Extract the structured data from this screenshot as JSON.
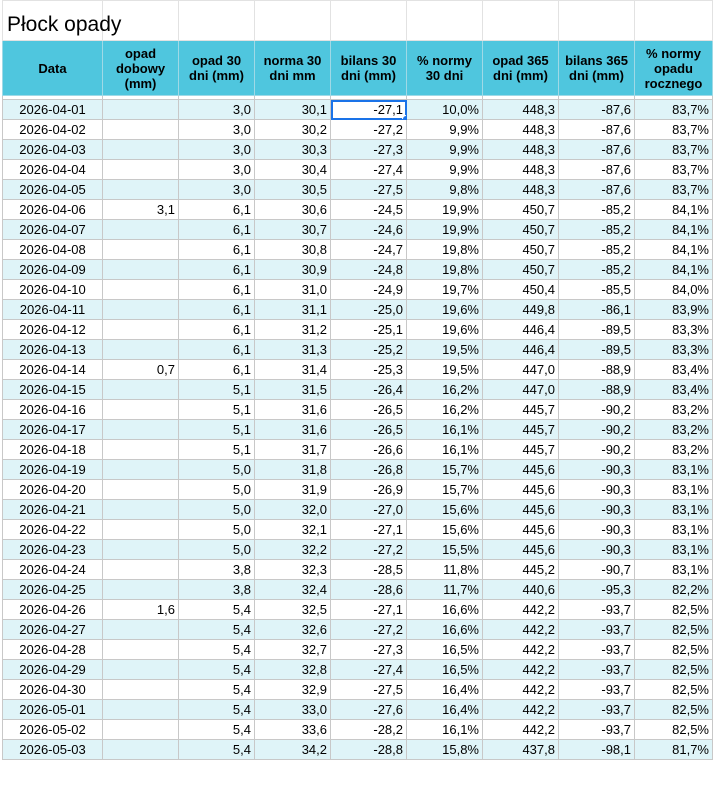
{
  "sheet": {
    "title": "Płock opady"
  },
  "columns": [
    "Data",
    "opad dobowy (mm)",
    "opad 30 dni (mm)",
    "norma 30 dni mm",
    "bilans 30 dni (mm)",
    "% normy 30 dni",
    "opad 365 dni (mm)",
    "bilans 365 dni (mm)",
    "% normy opadu rocznego"
  ],
  "rows": [
    [
      "2026-04-01",
      "",
      "3,0",
      "30,1",
      "-27,1",
      "10,0%",
      "448,3",
      "-87,6",
      "83,7%"
    ],
    [
      "2026-04-02",
      "",
      "3,0",
      "30,2",
      "-27,2",
      "9,9%",
      "448,3",
      "-87,6",
      "83,7%"
    ],
    [
      "2026-04-03",
      "",
      "3,0",
      "30,3",
      "-27,3",
      "9,9%",
      "448,3",
      "-87,6",
      "83,7%"
    ],
    [
      "2026-04-04",
      "",
      "3,0",
      "30,4",
      "-27,4",
      "9,9%",
      "448,3",
      "-87,6",
      "83,7%"
    ],
    [
      "2026-04-05",
      "",
      "3,0",
      "30,5",
      "-27,5",
      "9,8%",
      "448,3",
      "-87,6",
      "83,7%"
    ],
    [
      "2026-04-06",
      "3,1",
      "6,1",
      "30,6",
      "-24,5",
      "19,9%",
      "450,7",
      "-85,2",
      "84,1%"
    ],
    [
      "2026-04-07",
      "",
      "6,1",
      "30,7",
      "-24,6",
      "19,9%",
      "450,7",
      "-85,2",
      "84,1%"
    ],
    [
      "2026-04-08",
      "",
      "6,1",
      "30,8",
      "-24,7",
      "19,8%",
      "450,7",
      "-85,2",
      "84,1%"
    ],
    [
      "2026-04-09",
      "",
      "6,1",
      "30,9",
      "-24,8",
      "19,8%",
      "450,7",
      "-85,2",
      "84,1%"
    ],
    [
      "2026-04-10",
      "",
      "6,1",
      "31,0",
      "-24,9",
      "19,7%",
      "450,4",
      "-85,5",
      "84,0%"
    ],
    [
      "2026-04-11",
      "",
      "6,1",
      "31,1",
      "-25,0",
      "19,6%",
      "449,8",
      "-86,1",
      "83,9%"
    ],
    [
      "2026-04-12",
      "",
      "6,1",
      "31,2",
      "-25,1",
      "19,6%",
      "446,4",
      "-89,5",
      "83,3%"
    ],
    [
      "2026-04-13",
      "",
      "6,1",
      "31,3",
      "-25,2",
      "19,5%",
      "446,4",
      "-89,5",
      "83,3%"
    ],
    [
      "2026-04-14",
      "0,7",
      "6,1",
      "31,4",
      "-25,3",
      "19,5%",
      "447,0",
      "-88,9",
      "83,4%"
    ],
    [
      "2026-04-15",
      "",
      "5,1",
      "31,5",
      "-26,4",
      "16,2%",
      "447,0",
      "-88,9",
      "83,4%"
    ],
    [
      "2026-04-16",
      "",
      "5,1",
      "31,6",
      "-26,5",
      "16,2%",
      "445,7",
      "-90,2",
      "83,2%"
    ],
    [
      "2026-04-17",
      "",
      "5,1",
      "31,6",
      "-26,5",
      "16,1%",
      "445,7",
      "-90,2",
      "83,2%"
    ],
    [
      "2026-04-18",
      "",
      "5,1",
      "31,7",
      "-26,6",
      "16,1%",
      "445,7",
      "-90,2",
      "83,2%"
    ],
    [
      "2026-04-19",
      "",
      "5,0",
      "31,8",
      "-26,8",
      "15,7%",
      "445,6",
      "-90,3",
      "83,1%"
    ],
    [
      "2026-04-20",
      "",
      "5,0",
      "31,9",
      "-26,9",
      "15,7%",
      "445,6",
      "-90,3",
      "83,1%"
    ],
    [
      "2026-04-21",
      "",
      "5,0",
      "32,0",
      "-27,0",
      "15,6%",
      "445,6",
      "-90,3",
      "83,1%"
    ],
    [
      "2026-04-22",
      "",
      "5,0",
      "32,1",
      "-27,1",
      "15,6%",
      "445,6",
      "-90,3",
      "83,1%"
    ],
    [
      "2026-04-23",
      "",
      "5,0",
      "32,2",
      "-27,2",
      "15,5%",
      "445,6",
      "-90,3",
      "83,1%"
    ],
    [
      "2026-04-24",
      "",
      "3,8",
      "32,3",
      "-28,5",
      "11,8%",
      "445,2",
      "-90,7",
      "83,1%"
    ],
    [
      "2026-04-25",
      "",
      "3,8",
      "32,4",
      "-28,6",
      "11,7%",
      "440,6",
      "-95,3",
      "82,2%"
    ],
    [
      "2026-04-26",
      "1,6",
      "5,4",
      "32,5",
      "-27,1",
      "16,6%",
      "442,2",
      "-93,7",
      "82,5%"
    ],
    [
      "2026-04-27",
      "",
      "5,4",
      "32,6",
      "-27,2",
      "16,6%",
      "442,2",
      "-93,7",
      "82,5%"
    ],
    [
      "2026-04-28",
      "",
      "5,4",
      "32,7",
      "-27,3",
      "16,5%",
      "442,2",
      "-93,7",
      "82,5%"
    ],
    [
      "2026-04-29",
      "",
      "5,4",
      "32,8",
      "-27,4",
      "16,5%",
      "442,2",
      "-93,7",
      "82,5%"
    ],
    [
      "2026-04-30",
      "",
      "5,4",
      "32,9",
      "-27,5",
      "16,4%",
      "442,2",
      "-93,7",
      "82,5%"
    ],
    [
      "2026-05-01",
      "",
      "5,4",
      "33,0",
      "-27,6",
      "16,4%",
      "442,2",
      "-93,7",
      "82,5%"
    ],
    [
      "2026-05-02",
      "",
      "5,4",
      "33,6",
      "-28,2",
      "16,1%",
      "442,2",
      "-93,7",
      "82,5%"
    ],
    [
      "2026-05-03",
      "",
      "5,4",
      "34,2",
      "-28,8",
      "15,8%",
      "437,8",
      "-98,1",
      "81,7%"
    ]
  ],
  "selection": {
    "row": 0,
    "col": 4
  },
  "colors": {
    "header_bg": "#4fc6de",
    "band_bg": "#dff4f8",
    "selection": "#1a73e8"
  }
}
